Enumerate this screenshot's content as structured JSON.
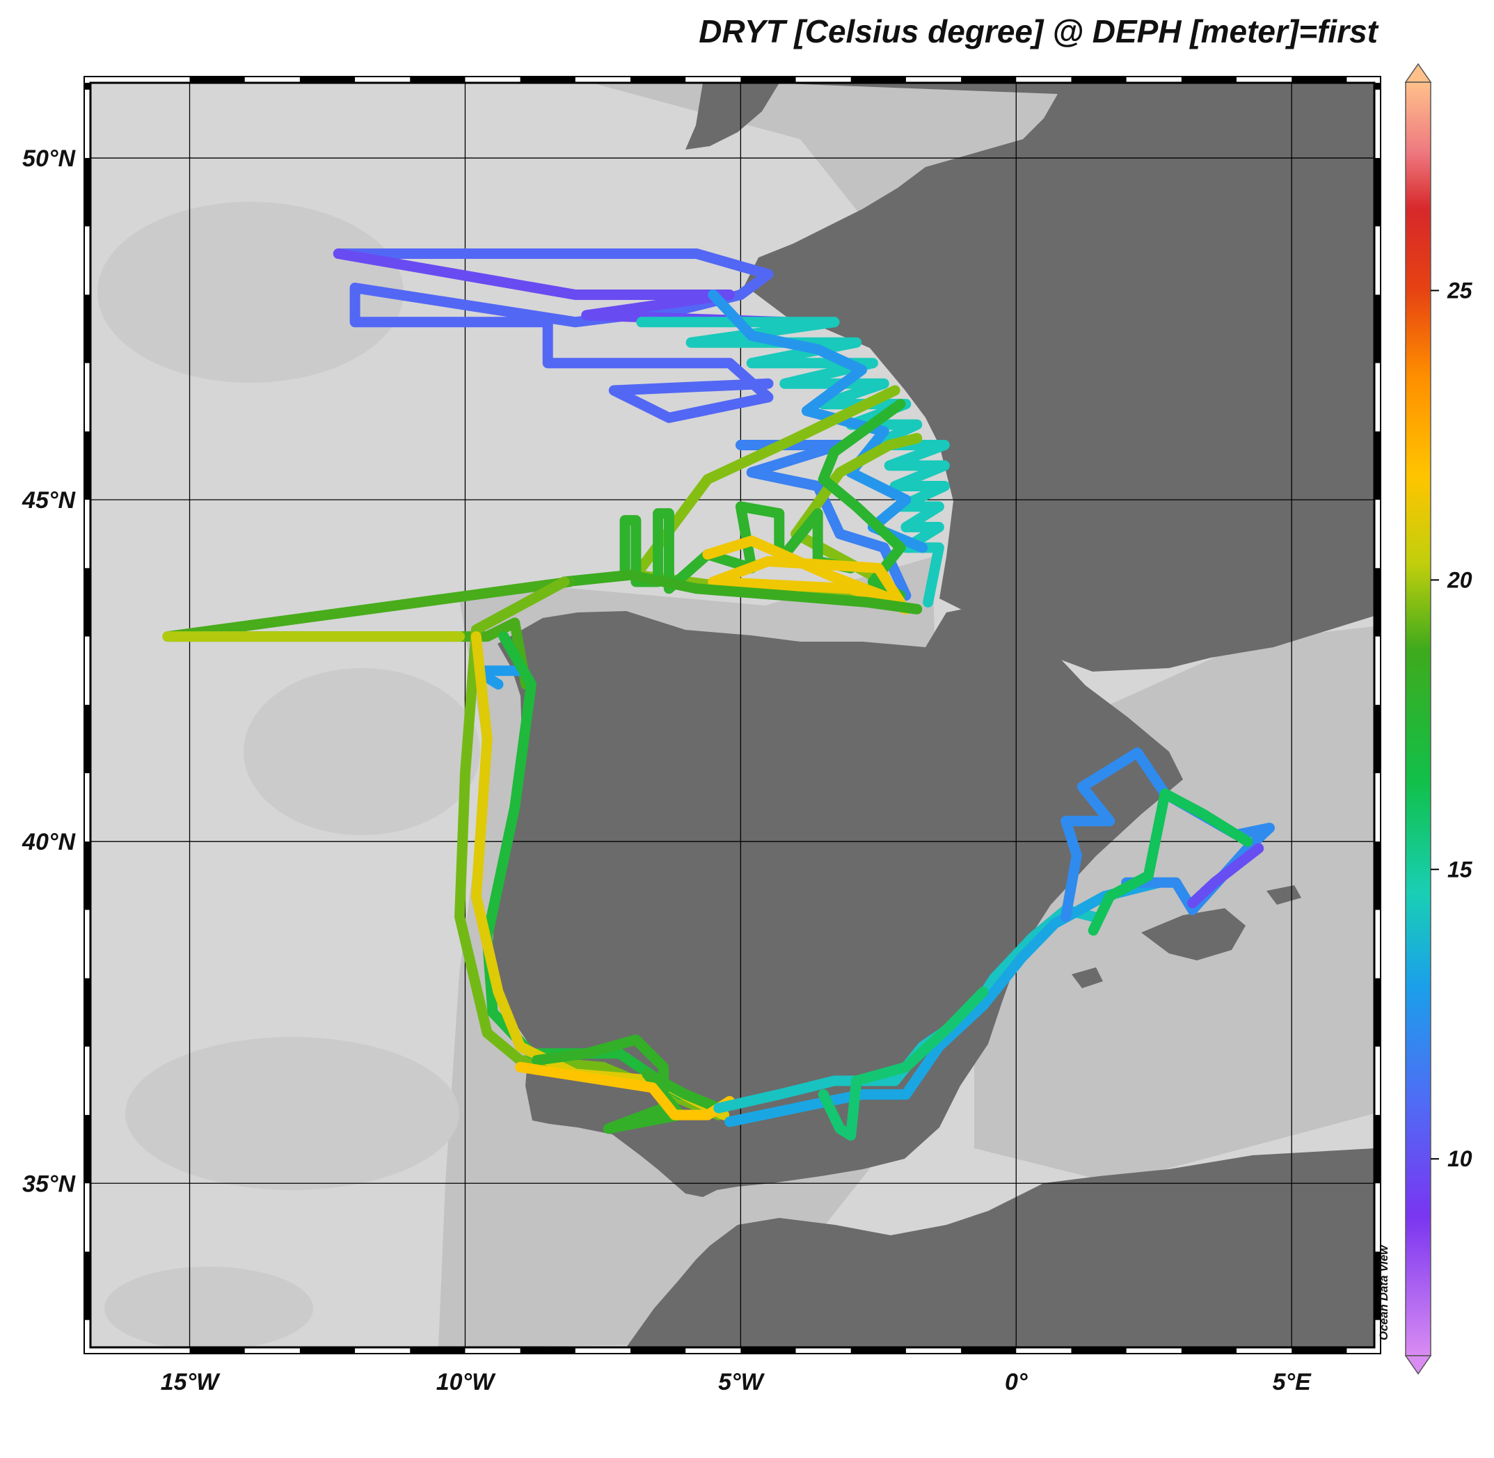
{
  "title": "DRYT [Celsius degree] @ DEPH [meter]=first",
  "credit": "Ocean Data View",
  "map": {
    "lon_range": [
      -16.8,
      6.5
    ],
    "lat_range": [
      32.6,
      51.1
    ],
    "lat_ticks": [
      {
        "value": 50,
        "label": "50°N"
      },
      {
        "value": 45,
        "label": "45°N"
      },
      {
        "value": 40,
        "label": "40°N"
      },
      {
        "value": 35,
        "label": "35°N"
      }
    ],
    "lon_ticks": [
      {
        "value": -15,
        "label": "15°W"
      },
      {
        "value": -10,
        "label": "10°W"
      },
      {
        "value": -5,
        "label": "5°W"
      },
      {
        "value": 0,
        "label": "0°"
      },
      {
        "value": 5,
        "label": "5°E"
      }
    ],
    "colors": {
      "sea": "#d6d6d6",
      "shelf": "#bcbcbc",
      "land": "#6b6b6b",
      "grid": "#000000"
    }
  },
  "colorbar": {
    "range": [
      6.6,
      28.6
    ],
    "ticks": [
      {
        "value": 10,
        "label": "10"
      },
      {
        "value": 15,
        "label": "15"
      },
      {
        "value": 20,
        "label": "20"
      },
      {
        "value": 25,
        "label": "25"
      }
    ],
    "stops": [
      {
        "v": 6.6,
        "c": "#d98cf2"
      },
      {
        "v": 9,
        "c": "#7a35f0"
      },
      {
        "v": 11,
        "c": "#4f6cf5"
      },
      {
        "v": 13,
        "c": "#1aa0ea"
      },
      {
        "v": 14.6,
        "c": "#19cfb4"
      },
      {
        "v": 16.5,
        "c": "#11c04a"
      },
      {
        "v": 18.8,
        "c": "#3faa1c"
      },
      {
        "v": 20.3,
        "c": "#c2cf0c"
      },
      {
        "v": 21.8,
        "c": "#ffc400"
      },
      {
        "v": 23.5,
        "c": "#ff8f00"
      },
      {
        "v": 25,
        "c": "#e64312"
      },
      {
        "v": 26.4,
        "c": "#d7282a"
      },
      {
        "v": 27.4,
        "c": "#ee7a80"
      },
      {
        "v": 28.6,
        "c": "#ffc08a"
      }
    ]
  },
  "tracks": [
    {
      "name": "north-atlantic-loop",
      "temp": 10.8,
      "points": [
        [
          -12.3,
          48.6
        ],
        [
          -5.8,
          48.6
        ],
        [
          -4.5,
          48.3
        ],
        [
          -5.0,
          48.0
        ],
        [
          -6.0,
          47.8
        ],
        [
          -8.0,
          47.6
        ],
        [
          -12.0,
          48.1
        ],
        [
          -12.0,
          47.6
        ],
        [
          -8.5,
          47.6
        ],
        [
          -8.5,
          47.0
        ],
        [
          -5.2,
          47.0
        ],
        [
          -4.5,
          46.5
        ],
        [
          -6.3,
          46.2
        ],
        [
          -7.3,
          46.6
        ],
        [
          -4.5,
          46.7
        ]
      ]
    },
    {
      "name": "north-atlantic-inner",
      "temp": 9.8,
      "points": [
        [
          -12.3,
          48.6
        ],
        [
          -8.0,
          48.0
        ],
        [
          -5.2,
          48.0
        ],
        [
          -7.8,
          47.7
        ],
        [
          -4.2,
          47.6
        ]
      ]
    },
    {
      "name": "biscay-north-transects",
      "temp": 14.4,
      "points": [
        [
          -6.8,
          47.6
        ],
        [
          -3.3,
          47.6
        ],
        [
          -5.9,
          47.3
        ],
        [
          -2.9,
          47.3
        ],
        [
          -4.8,
          47.0
        ],
        [
          -2.6,
          47.0
        ],
        [
          -4.2,
          46.7
        ],
        [
          -2.4,
          46.7
        ],
        [
          -3.5,
          46.4
        ],
        [
          -2.0,
          46.4
        ],
        [
          -3.0,
          46.1
        ],
        [
          -1.8,
          46.1
        ],
        [
          -2.6,
          45.8
        ],
        [
          -1.3,
          45.8
        ],
        [
          -2.3,
          45.5
        ],
        [
          -1.3,
          45.5
        ],
        [
          -2.2,
          45.2
        ],
        [
          -1.3,
          45.2
        ],
        [
          -2.1,
          44.9
        ],
        [
          -1.4,
          44.9
        ],
        [
          -2.0,
          44.6
        ],
        [
          -1.4,
          44.6
        ],
        [
          -2.0,
          44.3
        ],
        [
          -1.4,
          44.3
        ],
        [
          -1.6,
          43.5
        ]
      ]
    },
    {
      "name": "biscay-north-alt",
      "temp": 12.6,
      "points": [
        [
          -5.5,
          48.0
        ],
        [
          -4.8,
          47.4
        ],
        [
          -3.6,
          47.2
        ],
        [
          -2.8,
          46.9
        ],
        [
          -3.8,
          46.3
        ],
        [
          -2.4,
          46.0
        ],
        [
          -3.0,
          45.4
        ],
        [
          -2.0,
          45.0
        ],
        [
          -2.6,
          44.6
        ],
        [
          -1.7,
          44.3
        ]
      ]
    },
    {
      "name": "biscay-offshore-blue",
      "temp": 11.8,
      "points": [
        [
          -5.0,
          45.8
        ],
        [
          -3.2,
          45.8
        ],
        [
          -4.8,
          45.4
        ],
        [
          -3.6,
          45.2
        ],
        [
          -3.2,
          44.5
        ],
        [
          -2.4,
          44.3
        ],
        [
          -2.0,
          43.6
        ]
      ]
    },
    {
      "name": "biscay-warm-loop",
      "temp": 19.6,
      "points": [
        [
          -2.2,
          46.6
        ],
        [
          -4.0,
          45.9
        ],
        [
          -5.6,
          45.3
        ],
        [
          -6.9,
          43.9
        ],
        [
          -5.0,
          43.7
        ],
        [
          -2.9,
          43.6
        ],
        [
          -2.4,
          43.8
        ],
        [
          -4.0,
          44.5
        ],
        [
          -3.2,
          45.4
        ],
        [
          -2.3,
          45.8
        ],
        [
          -1.8,
          45.9
        ]
      ]
    },
    {
      "name": "biscay-inner-green",
      "temp": 17.8,
      "points": [
        [
          -2.1,
          46.4
        ],
        [
          -3.3,
          45.7
        ],
        [
          -3.5,
          45.3
        ],
        [
          -2.9,
          44.9
        ],
        [
          -2.1,
          44.3
        ],
        [
          -2.6,
          43.8
        ],
        [
          -2.1,
          43.6
        ]
      ]
    },
    {
      "name": "biscay-verticals",
      "temp": 18.0,
      "points": [
        [
          -7.1,
          43.9
        ],
        [
          -7.1,
          44.7
        ],
        [
          -6.9,
          44.7
        ],
        [
          -6.9,
          43.8
        ],
        [
          -6.5,
          43.8
        ],
        [
          -6.5,
          44.8
        ],
        [
          -6.3,
          44.8
        ],
        [
          -6.3,
          43.7
        ],
        [
          -5.6,
          44.2
        ],
        [
          -4.8,
          44.0
        ],
        [
          -5.0,
          44.9
        ],
        [
          -4.3,
          44.8
        ],
        [
          -4.3,
          44.1
        ],
        [
          -3.6,
          44.8
        ],
        [
          -3.6,
          44.1
        ],
        [
          -3.0,
          44.0
        ]
      ]
    },
    {
      "name": "cantabrian-coast-warm",
      "temp": 21.4,
      "points": [
        [
          -5.6,
          44.2
        ],
        [
          -4.8,
          44.4
        ],
        [
          -3.4,
          43.9
        ],
        [
          -2.1,
          43.5
        ],
        [
          -2.5,
          44.0
        ],
        [
          -4.5,
          44.1
        ],
        [
          -5.5,
          43.8
        ],
        [
          -3.0,
          43.7
        ],
        [
          -2.0,
          43.4
        ]
      ]
    },
    {
      "name": "cantabrian-coast-main",
      "temp": 18.6,
      "points": [
        [
          -8.2,
          43.8
        ],
        [
          -7.0,
          43.9
        ],
        [
          -5.8,
          43.7
        ],
        [
          -4.2,
          43.6
        ],
        [
          -2.7,
          43.5
        ],
        [
          -1.8,
          43.4
        ]
      ]
    },
    {
      "name": "atlantic-west-leg",
      "temp": 18.9,
      "points": [
        [
          -8.1,
          43.8
        ],
        [
          -15.4,
          43.0
        ],
        [
          -9.6,
          43.0
        ],
        [
          -9.1,
          43.2
        ],
        [
          -8.9,
          42.3
        ]
      ]
    },
    {
      "name": "atlantic-west-return",
      "temp": 20.1,
      "points": [
        [
          -15.4,
          43.0
        ],
        [
          -10.1,
          43.0
        ]
      ]
    },
    {
      "name": "galicia-blue",
      "temp": 12.8,
      "points": [
        [
          -9.0,
          42.5
        ],
        [
          -9.8,
          42.5
        ],
        [
          -9.4,
          42.3
        ]
      ]
    },
    {
      "name": "portugal-coast-outer",
      "temp": 19.4,
      "points": [
        [
          -8.2,
          43.8
        ],
        [
          -9.8,
          43.1
        ],
        [
          -10.0,
          41.0
        ],
        [
          -10.1,
          38.9
        ],
        [
          -9.6,
          37.2
        ],
        [
          -9.0,
          36.8
        ],
        [
          -7.5,
          36.7
        ],
        [
          -6.0,
          36.2
        ],
        [
          -5.4,
          36.0
        ]
      ]
    },
    {
      "name": "portugal-coast-inner",
      "temp": 17.2,
      "points": [
        [
          -9.3,
          43.0
        ],
        [
          -8.8,
          42.3
        ],
        [
          -9.1,
          40.5
        ],
        [
          -9.6,
          38.6
        ],
        [
          -9.5,
          37.5
        ],
        [
          -8.8,
          36.9
        ],
        [
          -7.2,
          36.9
        ],
        [
          -6.1,
          36.3
        ]
      ]
    },
    {
      "name": "portugal-warm-track",
      "temp": 21.0,
      "points": [
        [
          -9.8,
          43.0
        ],
        [
          -9.6,
          41.5
        ],
        [
          -9.8,
          39.2
        ],
        [
          -9.4,
          37.8
        ],
        [
          -9.0,
          37.0
        ],
        [
          -8.0,
          36.6
        ],
        [
          -6.5,
          36.5
        ],
        [
          -5.8,
          36.2
        ],
        [
          -5.3,
          36.0
        ]
      ]
    },
    {
      "name": "gulf-cadiz-loops",
      "temp": 18.2,
      "points": [
        [
          -8.7,
          36.8
        ],
        [
          -7.8,
          36.9
        ],
        [
          -6.9,
          37.1
        ],
        [
          -6.4,
          36.7
        ],
        [
          -6.4,
          36.1
        ],
        [
          -7.4,
          35.8
        ],
        [
          -6.1,
          36.0
        ],
        [
          -6.7,
          36.6
        ],
        [
          -6.0,
          36.3
        ],
        [
          -5.4,
          36.1
        ]
      ]
    },
    {
      "name": "gulf-cadiz-warm",
      "temp": 21.8,
      "points": [
        [
          -9.0,
          36.7
        ],
        [
          -7.4,
          36.5
        ],
        [
          -6.6,
          36.4
        ],
        [
          -6.2,
          36.0
        ],
        [
          -5.6,
          36.0
        ],
        [
          -5.2,
          36.2
        ]
      ]
    },
    {
      "name": "alboran-coast",
      "temp": 14.2,
      "points": [
        [
          -5.4,
          36.1
        ],
        [
          -4.3,
          36.3
        ],
        [
          -3.3,
          36.5
        ],
        [
          -2.2,
          36.5
        ],
        [
          -1.7,
          37.0
        ],
        [
          -0.8,
          37.5
        ],
        [
          -0.4,
          38.0
        ],
        [
          0.3,
          38.6
        ],
        [
          0.9,
          39.0
        ],
        [
          1.4,
          38.9
        ]
      ]
    },
    {
      "name": "alboran-south",
      "temp": 13.2,
      "points": [
        [
          -5.2,
          35.9
        ],
        [
          -4.0,
          36.1
        ],
        [
          -2.8,
          36.3
        ],
        [
          -2.0,
          36.3
        ],
        [
          -1.4,
          37.0
        ],
        [
          -0.6,
          37.6
        ],
        [
          0.1,
          38.3
        ],
        [
          0.7,
          38.8
        ],
        [
          1.6,
          39.2
        ],
        [
          2.6,
          39.4
        ]
      ]
    },
    {
      "name": "alboran-green-dip",
      "temp": 15.8,
      "points": [
        [
          -3.5,
          36.3
        ],
        [
          -3.2,
          35.8
        ],
        [
          -3.0,
          35.7
        ],
        [
          -2.9,
          36.5
        ],
        [
          -2.0,
          36.7
        ],
        [
          -1.2,
          37.3
        ],
        [
          -0.6,
          37.8
        ]
      ]
    },
    {
      "name": "balearic-blue",
      "temp": 12.2,
      "points": [
        [
          0.9,
          38.9
        ],
        [
          1.1,
          39.8
        ],
        [
          0.9,
          40.3
        ],
        [
          1.7,
          40.3
        ],
        [
          1.2,
          40.8
        ],
        [
          2.2,
          41.3
        ],
        [
          2.7,
          40.7
        ],
        [
          4.0,
          40.1
        ],
        [
          4.6,
          40.2
        ],
        [
          4.2,
          39.9
        ],
        [
          3.2,
          39.0
        ],
        [
          2.9,
          39.4
        ],
        [
          2.0,
          39.4
        ]
      ]
    },
    {
      "name": "balearic-purple",
      "temp": 9.9,
      "points": [
        [
          4.4,
          39.9
        ],
        [
          3.6,
          39.4
        ],
        [
          3.2,
          39.1
        ]
      ]
    },
    {
      "name": "balearic-green",
      "temp": 16.2,
      "points": [
        [
          1.4,
          38.7
        ],
        [
          1.7,
          39.2
        ],
        [
          2.4,
          39.5
        ],
        [
          2.7,
          40.7
        ],
        [
          3.4,
          40.4
        ],
        [
          4.2,
          40.0
        ]
      ]
    }
  ]
}
